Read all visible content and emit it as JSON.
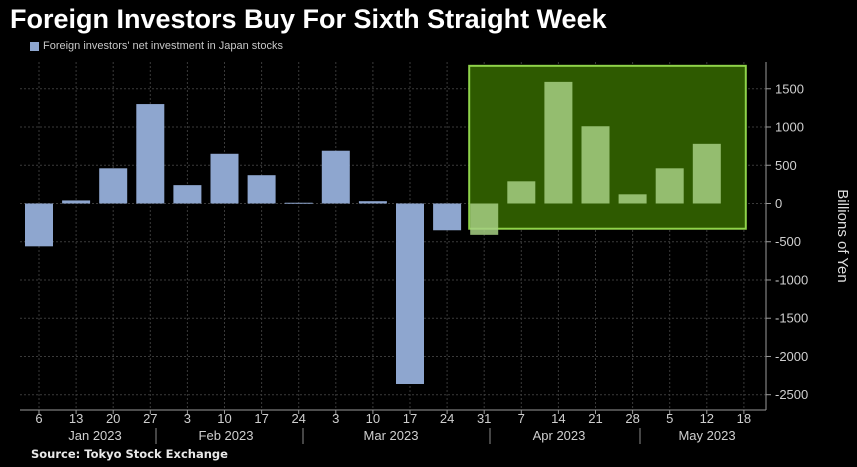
{
  "title": "Foreign Investors Buy For Sixth Straight Week",
  "source": "Source: Tokyo Stock Exchange",
  "colors": {
    "bar": "#8ea6cf",
    "highlight_bar": "#a6cf82",
    "highlight_fill": "#2e5a00",
    "highlight_border": "#8fd34a",
    "grid": "#3a3a3a",
    "background": "#000000"
  },
  "chart_data": {
    "type": "bar",
    "title": "Foreign Investors Buy For Sixth Straight Week",
    "series": [
      {
        "name": "Foreign investors' net investment in Japan stocks",
        "values": [
          -560,
          40,
          460,
          1300,
          240,
          650,
          370,
          10,
          690,
          30,
          -2360,
          -350,
          -410,
          290,
          1590,
          1010,
          120,
          460,
          780
        ]
      }
    ],
    "categories": [
      "6",
      "13",
      "20",
      "27",
      "3",
      "10",
      "17",
      "24",
      "3",
      "10",
      "17",
      "24",
      "31",
      "7",
      "14",
      "21",
      "28",
      "5",
      "12"
    ],
    "x_tick_labels": [
      "6",
      "13",
      "20",
      "27",
      "3",
      "10",
      "17",
      "24",
      "3",
      "10",
      "17",
      "24",
      "31",
      "7",
      "14",
      "21",
      "28",
      "5",
      "12",
      "18"
    ],
    "month_labels": [
      "Jan 2023",
      "Feb 2023",
      "Mar 2023",
      "Apr 2023",
      "May 2023"
    ],
    "ylabel": "Billions of Yen",
    "ylim": [
      -2700,
      1850
    ],
    "yticks": [
      1500,
      1000,
      500,
      0,
      -500,
      -1000,
      -1500,
      -2000,
      -2500
    ],
    "y_axis_side": "right",
    "grid": true,
    "highlighted_categories": [
      12,
      13,
      14,
      15,
      16,
      17,
      18
    ]
  }
}
